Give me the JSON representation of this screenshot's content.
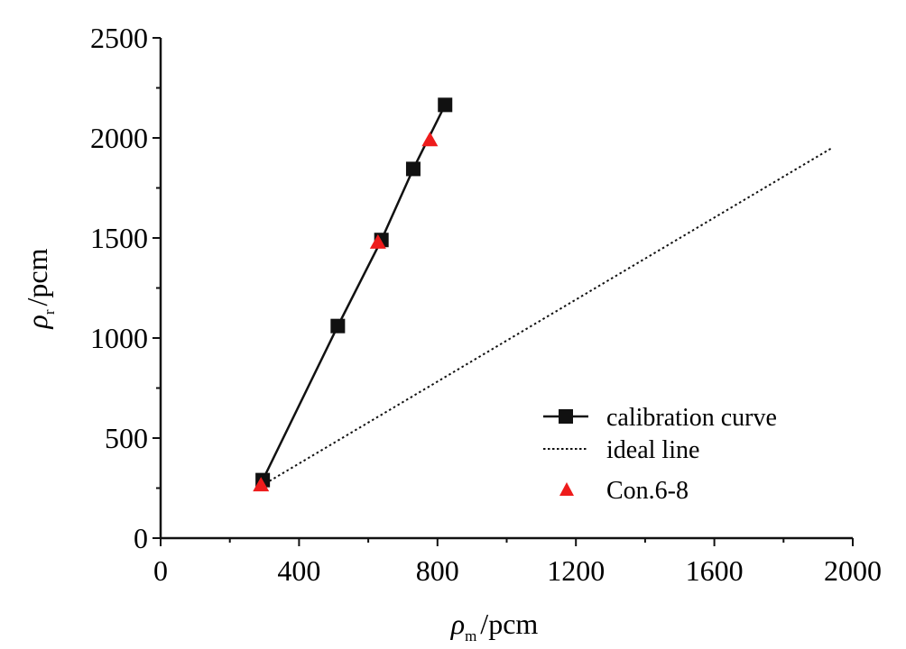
{
  "chart_data": {
    "type": "scatter",
    "title": "",
    "xlabel": {
      "symbol": "ρ",
      "sub": "m",
      "unit": "/pcm"
    },
    "ylabel": {
      "symbol": "ρ",
      "sub": "r",
      "unit": "/pcm"
    },
    "xlim": [
      0,
      2000
    ],
    "ylim": [
      0,
      2500
    ],
    "x_ticks": [
      0,
      400,
      800,
      1200,
      1600,
      2000
    ],
    "y_ticks": [
      0,
      500,
      1000,
      1500,
      2000,
      2500
    ],
    "x_tick_labels": [
      "0",
      "400",
      "800",
      "1200",
      "1600",
      "2000"
    ],
    "y_tick_labels": [
      "0",
      "500",
      "1000",
      "1500",
      "2000",
      "2500"
    ],
    "grid": false,
    "legend_position": "bottom-right",
    "series": [
      {
        "name": "calibration curve",
        "kind": "line-with-square-markers",
        "color": "#111111",
        "points": [
          {
            "x": 295,
            "y": 290
          },
          {
            "x": 512,
            "y": 1060
          },
          {
            "x": 638,
            "y": 1490
          },
          {
            "x": 730,
            "y": 1845
          },
          {
            "x": 822,
            "y": 2165
          }
        ]
      },
      {
        "name": "ideal line",
        "kind": "dotted-line",
        "color": "#111111",
        "points": [
          {
            "x": 290,
            "y": 260
          },
          {
            "x": 1940,
            "y": 1950
          }
        ]
      },
      {
        "name": "Con.6-8",
        "kind": "triangle-markers",
        "color": "#ee1c1c",
        "points": [
          {
            "x": 290,
            "y": 265
          },
          {
            "x": 628,
            "y": 1478
          },
          {
            "x": 778,
            "y": 1990
          }
        ]
      }
    ]
  }
}
